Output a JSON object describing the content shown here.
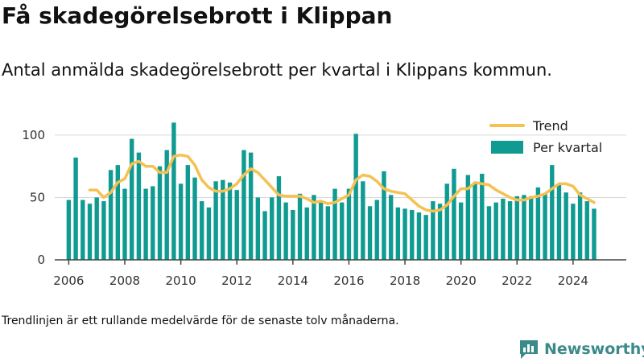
{
  "title": "Få skadegörelsebrott i Klippan",
  "subtitle": "Antal anmälda skadegörelsebrott per kvartal i Klippans kommun.",
  "footnote": "Trendlinjen är ett rullande medelvärde för de senaste tolv månaderna.",
  "brand": {
    "name": "Newsworthy",
    "icon": "bar-chart-speech-bubble-icon"
  },
  "colors": {
    "bars": "#0f9b92",
    "trend": "#f5c152",
    "axis": "#444444",
    "grid": "#d9d9d9",
    "brand": "#3a8a8a"
  },
  "chart_data": {
    "type": "bar",
    "x_ticks": [
      "2006",
      "2008",
      "2010",
      "2012",
      "2014",
      "2016",
      "2018",
      "2020",
      "2022",
      "2024"
    ],
    "y_ticks": [
      "0",
      "50",
      "100"
    ],
    "ylim": [
      0,
      118
    ],
    "xlim": [
      2005.5,
      2025.9
    ],
    "grid": "horizontal",
    "legend_position": "top-right",
    "series": [
      {
        "name": "Per kvartal",
        "type": "bar",
        "x": [
          2006.0,
          2006.25,
          2006.5,
          2006.75,
          2007.0,
          2007.25,
          2007.5,
          2007.75,
          2008.0,
          2008.25,
          2008.5,
          2008.75,
          2009.0,
          2009.25,
          2009.5,
          2009.75,
          2010.0,
          2010.25,
          2010.5,
          2010.75,
          2011.0,
          2011.25,
          2011.5,
          2011.75,
          2012.0,
          2012.25,
          2012.5,
          2012.75,
          2013.0,
          2013.25,
          2013.5,
          2013.75,
          2014.0,
          2014.25,
          2014.5,
          2014.75,
          2015.0,
          2015.25,
          2015.5,
          2015.75,
          2016.0,
          2016.25,
          2016.5,
          2016.75,
          2017.0,
          2017.25,
          2017.5,
          2017.75,
          2018.0,
          2018.25,
          2018.5,
          2018.75,
          2019.0,
          2019.25,
          2019.5,
          2019.75,
          2020.0,
          2020.25,
          2020.5,
          2020.75,
          2021.0,
          2021.25,
          2021.5,
          2021.75,
          2022.0,
          2022.25,
          2022.5,
          2022.75,
          2023.0,
          2023.25,
          2023.5,
          2023.75,
          2024.0,
          2024.25,
          2024.5,
          2024.75
        ],
        "values": [
          48,
          82,
          48,
          45,
          50,
          47,
          72,
          76,
          57,
          97,
          86,
          57,
          59,
          75,
          88,
          110,
          61,
          76,
          66,
          47,
          42,
          63,
          64,
          62,
          56,
          88,
          86,
          50,
          39,
          50,
          67,
          46,
          40,
          53,
          42,
          52,
          46,
          43,
          57,
          46,
          57,
          101,
          63,
          43,
          48,
          71,
          52,
          42,
          41,
          40,
          38,
          36,
          47,
          45,
          61,
          73,
          46,
          68,
          61,
          69,
          43,
          46,
          49,
          47,
          51,
          52,
          51,
          58,
          53,
          76,
          61,
          54,
          45,
          54,
          47,
          41
        ]
      },
      {
        "name": "Trend",
        "type": "line",
        "x": [
          2006.75,
          2007.0,
          2007.25,
          2007.5,
          2007.75,
          2008.0,
          2008.25,
          2008.5,
          2008.75,
          2009.0,
          2009.25,
          2009.5,
          2009.75,
          2010.0,
          2010.25,
          2010.5,
          2010.75,
          2011.0,
          2011.25,
          2011.5,
          2011.75,
          2012.0,
          2012.25,
          2012.5,
          2012.75,
          2013.0,
          2013.25,
          2013.5,
          2013.75,
          2014.0,
          2014.25,
          2014.5,
          2014.75,
          2015.0,
          2015.25,
          2015.5,
          2015.75,
          2016.0,
          2016.25,
          2016.5,
          2016.75,
          2017.0,
          2017.25,
          2017.5,
          2017.75,
          2018.0,
          2018.25,
          2018.5,
          2018.75,
          2019.0,
          2019.25,
          2019.5,
          2019.75,
          2020.0,
          2020.25,
          2020.5,
          2020.75,
          2021.0,
          2021.25,
          2021.5,
          2021.75,
          2022.0,
          2022.25,
          2022.5,
          2022.75,
          2023.0,
          2023.25,
          2023.5,
          2023.75,
          2024.0,
          2024.25,
          2024.5,
          2024.75
        ],
        "values": [
          56,
          56,
          50,
          54,
          62,
          65,
          77,
          79,
          75,
          75,
          70,
          70,
          83,
          84,
          83,
          76,
          64,
          58,
          55,
          55,
          57,
          61,
          68,
          73,
          70,
          64,
          58,
          52,
          51,
          51,
          51,
          49,
          46,
          47,
          45,
          46,
          49,
          52,
          64,
          68,
          67,
          63,
          57,
          55,
          54,
          53,
          48,
          43,
          40,
          39,
          40,
          44,
          51,
          57,
          57,
          62,
          61,
          60,
          56,
          53,
          50,
          48,
          48,
          50,
          51,
          53,
          57,
          61,
          61,
          59,
          52,
          49,
          46
        ]
      }
    ]
  }
}
